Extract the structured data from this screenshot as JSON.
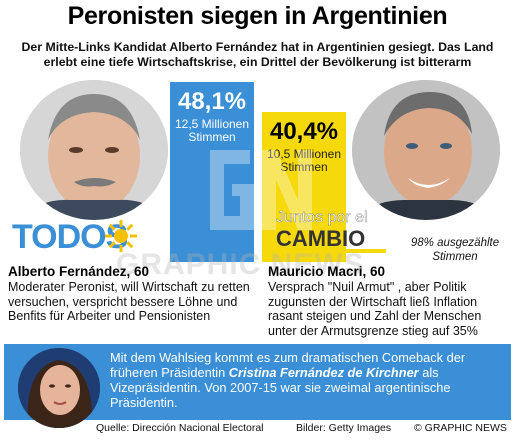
{
  "headline": "Peronisten siegen in Argentinien",
  "subhead": "Der Mitte-Links Kandidat Alberto Fernández hat in Argentinien gesiegt. Das Land erlebt eine tiefe Wirtschaftskrise, ein Drittel der Bevölkerung ist bitterarm",
  "results": {
    "left": {
      "percent": "48,1%",
      "votes": "12,5 Millionen Stimmen",
      "share": 48.1
    },
    "right": {
      "percent": "40,4%",
      "votes": "10,5 Millionen Stimmen",
      "share": 40.4
    }
  },
  "logos": {
    "todos": "TODOS",
    "juntos_line1": "Juntos por el",
    "juntos_line2": "CAMBIO"
  },
  "counted": "98% ausgezählte Stimmen",
  "candidates": {
    "left": {
      "name": "Alberto Fernández, 60",
      "text": "Moderater Peronist, will Wirtschaft zu retten versuchen, verspricht bessere Löhne und Benfits für Arbeiter und Pensionisten"
    },
    "right": {
      "name": "Mauricio Macri, 60",
      "text": "Versprach \"Nuil Armut\" , aber Politik zugunsten der Wirtschaft ließ Inflation rasant steigen und Zahl der Menschen unter der Armutsgrenze stieg auf 35%"
    }
  },
  "bottom": {
    "text_before": "Mit dem Wahlsieg kommt es zum dramatischen Comeback der früheren Präsidentin ",
    "name": "Cristina Fernández de Kirchner",
    "text_after": " als Vizepräsidentin. Von 2007-15 war sie zweimal argentinische Präsidentin."
  },
  "footer": {
    "source": "Quelle: Dirección Nacional Electoral",
    "pictures": "Bilder: Getty Images",
    "copyright": "© GRAPHIC NEWS"
  },
  "watermark": "GRAPHIC NEWS",
  "colors": {
    "accent_blue": "#3a8fd6",
    "accent_yellow": "#f5d90a",
    "sun_yellow": "#f5c000"
  }
}
